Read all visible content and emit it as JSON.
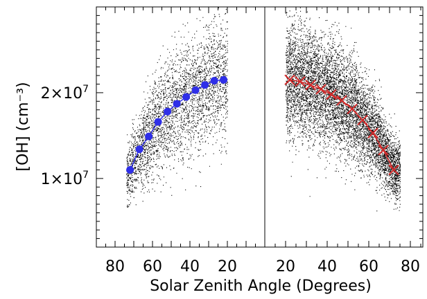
{
  "chart_data": {
    "type": "scatter",
    "title": "",
    "xlabel": "Solar Zenith Angle (Degrees)",
    "ylabel": "[OH] (cm⁻³)",
    "ylim": [
      2000000,
      30000000
    ],
    "y_ticks": [
      {
        "value": 10000000,
        "label_mantissa": "1×10",
        "label_exp": "7"
      },
      {
        "value": 20000000,
        "label_mantissa": "2×10",
        "label_exp": "7"
      }
    ],
    "grid": false,
    "legend": "none",
    "panels": [
      {
        "name": "left",
        "xlim": [
          90,
          0
        ],
        "x_ticks": [
          80,
          60,
          40,
          20
        ],
        "x_tick_labels": [
          "80",
          "60",
          "40",
          "20"
        ],
        "scatter_sza_range": [
          74,
          20
        ],
        "series": [
          {
            "marker": "filled-circle",
            "color": "#2f2fe8",
            "x": [
              72,
              67,
              62,
              57,
              52,
              47,
              42,
              37,
              32,
              27,
              22
            ],
            "y": [
              11000000,
              13400000,
              14900000,
              16600000,
              17800000,
              18700000,
              19500000,
              20300000,
              20900000,
              21400000,
              21500000
            ]
          }
        ]
      },
      {
        "name": "right",
        "xlim": [
          10,
          86
        ],
        "x_ticks": [
          20,
          40,
          60,
          80
        ],
        "x_tick_labels": [
          "20",
          "40",
          "60",
          "80"
        ],
        "scatter_sza_range": [
          20,
          75
        ],
        "series": [
          {
            "marker": "x",
            "color": "#d42a2a",
            "x": [
              22,
              27,
              32,
              37,
              42,
              47,
              52,
              57,
              62,
              67,
              72
            ],
            "y": [
              21500000,
              21300000,
              20900000,
              20400000,
              19800000,
              19100000,
              18100000,
              16800000,
              15300000,
              13300000,
              11000000
            ]
          }
        ]
      }
    ]
  }
}
